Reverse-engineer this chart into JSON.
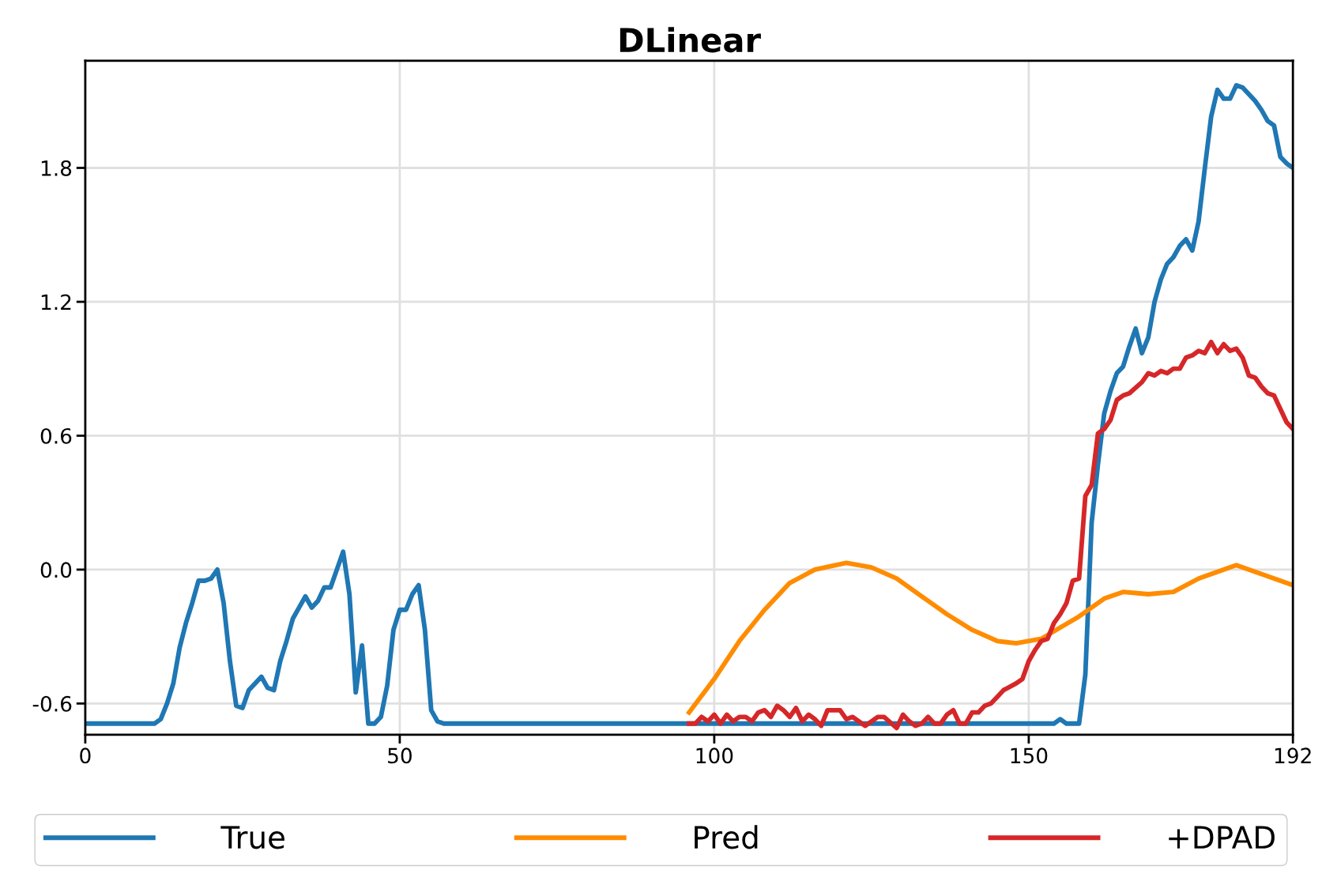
{
  "chart_data": {
    "type": "line",
    "title": "DLinear",
    "xlim": [
      0,
      192
    ],
    "xticks": [
      0,
      50,
      100,
      150,
      192
    ],
    "ylim": [
      -0.74,
      2.28
    ],
    "yticks": [
      {
        "value": -0.6,
        "label": "-0.6"
      },
      {
        "value": 0,
        "label": "0.0"
      },
      {
        "value": 0.6,
        "label": "0.6"
      },
      {
        "value": 1.2,
        "label": "1.2"
      },
      {
        "value": 1.8,
        "label": "1.8"
      }
    ],
    "grid": true,
    "legend": "bottom",
    "line_style": "solid",
    "series": [
      {
        "name": "True",
        "color": "#1f77b4",
        "x": [
          0,
          11,
          12,
          13,
          14,
          15,
          16,
          17,
          18,
          19,
          20,
          21,
          22,
          23,
          24,
          25,
          26,
          27,
          28,
          29,
          30,
          31,
          32,
          33,
          34,
          35,
          36,
          37,
          38,
          39,
          40,
          41,
          42,
          43,
          44,
          45,
          46,
          47,
          48,
          49,
          50,
          51,
          52,
          53,
          54,
          55,
          56,
          57,
          154,
          155,
          156,
          158,
          159,
          160,
          161,
          162,
          163,
          164,
          165,
          166,
          167,
          168,
          169,
          170,
          171,
          172,
          173,
          174,
          175,
          176,
          177,
          178,
          179,
          180,
          181,
          182,
          183,
          184,
          185,
          186,
          187,
          188,
          189,
          190,
          191,
          192
        ],
        "values": [
          -0.69,
          -0.69,
          -0.67,
          -0.6,
          -0.51,
          -0.35,
          -0.24,
          -0.15,
          -0.05,
          -0.05,
          -0.04,
          0.0,
          -0.15,
          -0.41,
          -0.61,
          -0.62,
          -0.54,
          -0.51,
          -0.48,
          -0.53,
          -0.54,
          -0.41,
          -0.32,
          -0.22,
          -0.17,
          -0.12,
          -0.17,
          -0.14,
          -0.08,
          -0.08,
          0.0,
          0.08,
          -0.11,
          -0.55,
          -0.34,
          -0.69,
          -0.69,
          -0.66,
          -0.52,
          -0.27,
          -0.18,
          -0.18,
          -0.11,
          -0.07,
          -0.27,
          -0.63,
          -0.68,
          -0.69,
          -0.69,
          -0.67,
          -0.69,
          -0.69,
          -0.47,
          0.21,
          0.47,
          0.7,
          0.8,
          0.88,
          0.91,
          1.0,
          1.08,
          0.97,
          1.04,
          1.2,
          1.3,
          1.37,
          1.4,
          1.45,
          1.48,
          1.43,
          1.56,
          1.8,
          2.03,
          2.15,
          2.11,
          2.11,
          2.17,
          2.16,
          2.13,
          2.1,
          2.06,
          2.01,
          1.99,
          1.85,
          1.82,
          1.8
        ]
      },
      {
        "name": "Pred",
        "color": "#ff8c00",
        "x": [
          96,
          100,
          104,
          108,
          112,
          116,
          121,
          125,
          129,
          133,
          137,
          141,
          145,
          148,
          152,
          155,
          158,
          162,
          165,
          169,
          173,
          177,
          183,
          187,
          192
        ],
        "values": [
          -0.64,
          -0.49,
          -0.32,
          -0.18,
          -0.06,
          0.0,
          0.03,
          0.01,
          -0.04,
          -0.12,
          -0.2,
          -0.27,
          -0.32,
          -0.33,
          -0.31,
          -0.26,
          -0.21,
          -0.13,
          -0.1,
          -0.11,
          -0.1,
          -0.04,
          0.02,
          -0.02,
          -0.07
        ]
      },
      {
        "name": "+DPAD",
        "color": "#d62728",
        "x": [
          96,
          97,
          98,
          99,
          100,
          101,
          102,
          103,
          104,
          105,
          106,
          107,
          108,
          109,
          110,
          111,
          112,
          113,
          114,
          115,
          116,
          117,
          118,
          120,
          121,
          122,
          124,
          126,
          127,
          129,
          130,
          131,
          132,
          133,
          134,
          135,
          136,
          137,
          138,
          139,
          140,
          141,
          142,
          143,
          144,
          145,
          146,
          148,
          149,
          150,
          151,
          152,
          153,
          154,
          155,
          156,
          157,
          158,
          159,
          160,
          161,
          162,
          163,
          164,
          165,
          166,
          168,
          169,
          170,
          171,
          172,
          173,
          174,
          175,
          176,
          177,
          178,
          179,
          180,
          181,
          182,
          183,
          184,
          185,
          186,
          187,
          188,
          189,
          191,
          192
        ],
        "values": [
          -0.69,
          -0.69,
          -0.66,
          -0.68,
          -0.65,
          -0.69,
          -0.65,
          -0.68,
          -0.66,
          -0.66,
          -0.68,
          -0.64,
          -0.63,
          -0.66,
          -0.61,
          -0.63,
          -0.66,
          -0.62,
          -0.68,
          -0.65,
          -0.67,
          -0.7,
          -0.63,
          -0.63,
          -0.67,
          -0.66,
          -0.7,
          -0.66,
          -0.66,
          -0.71,
          -0.65,
          -0.68,
          -0.7,
          -0.69,
          -0.66,
          -0.69,
          -0.69,
          -0.65,
          -0.63,
          -0.69,
          -0.69,
          -0.64,
          -0.64,
          -0.61,
          -0.6,
          -0.57,
          -0.54,
          -0.51,
          -0.49,
          -0.41,
          -0.36,
          -0.32,
          -0.31,
          -0.24,
          -0.2,
          -0.15,
          -0.05,
          -0.04,
          0.33,
          0.38,
          0.61,
          0.63,
          0.67,
          0.76,
          0.78,
          0.79,
          0.84,
          0.88,
          0.87,
          0.89,
          0.88,
          0.9,
          0.9,
          0.95,
          0.96,
          0.98,
          0.97,
          1.02,
          0.97,
          1.01,
          0.98,
          0.99,
          0.95,
          0.87,
          0.86,
          0.82,
          0.79,
          0.78,
          0.66,
          0.63
        ]
      }
    ]
  }
}
